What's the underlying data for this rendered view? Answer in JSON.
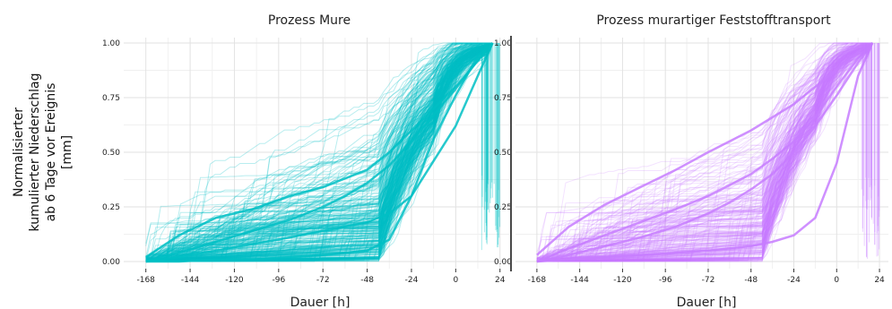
{
  "chart_data": {
    "type": "line",
    "ylabel_lines": [
      "Normalisierter",
      "kumulierter Niederschlag",
      "ab 6 Tage vor Ereignis",
      "[mm]"
    ],
    "ylim": [
      0,
      1
    ],
    "xlim": [
      -180,
      29
    ],
    "grid": true,
    "legend": "none",
    "y_ticks": [
      0.0,
      0.25,
      0.5,
      0.75,
      1.0
    ],
    "y_tick_labels": [
      "0.00",
      "0.25",
      "0.50",
      "0.75",
      "1.00"
    ],
    "x_ticks": [
      -168,
      -144,
      -120,
      -96,
      -72,
      -48,
      -24,
      0,
      24
    ],
    "x_tick_labels": [
      "-168",
      "-144",
      "-120",
      "-96",
      "-72",
      "-48",
      "-24",
      "0",
      "24"
    ],
    "panels": [
      {
        "title": "Prozess Mure",
        "xlabel": "Dauer [h]",
        "color": "#00bfc4",
        "line_count": 300,
        "note": "Each line is one normalised cumulative precipitation curve from -168 h to the event (≈ +20 h); individual values are not labelled.",
        "series": [
          {
            "x": [
              -168,
              -150,
              -130,
              -110,
              -90,
              -72,
              -60,
              -48,
              -36,
              -24,
              -12,
              0,
              12,
              20
            ],
            "y": [
              0.0,
              0.02,
              0.05,
              0.08,
              0.11,
              0.14,
              0.16,
              0.18,
              0.22,
              0.3,
              0.46,
              0.62,
              0.85,
              1.0
            ]
          },
          {
            "x": [
              -168,
              -150,
              -130,
              -110,
              -90,
              -72,
              -60,
              -48,
              -36,
              -24,
              -12,
              0,
              12,
              20
            ],
            "y": [
              0.0,
              0.0,
              0.01,
              0.01,
              0.02,
              0.03,
              0.04,
              0.05,
              0.1,
              0.3,
              0.56,
              0.76,
              0.94,
              1.0
            ]
          },
          {
            "x": [
              -168,
              -150,
              -130,
              -110,
              -90,
              -72,
              -60,
              -48,
              -36,
              -24,
              -12,
              0,
              12,
              20
            ],
            "y": [
              0.02,
              0.12,
              0.2,
              0.24,
              0.3,
              0.34,
              0.38,
              0.42,
              0.5,
              0.6,
              0.7,
              0.8,
              0.92,
              1.0
            ]
          },
          {
            "x": [
              -168,
              -150,
              -130,
              -110,
              -90,
              -72,
              -60,
              -48,
              -36,
              -24,
              -12,
              0,
              12,
              20
            ],
            "y": [
              0.0,
              0.04,
              0.09,
              0.14,
              0.19,
              0.25,
              0.3,
              0.36,
              0.44,
              0.55,
              0.67,
              0.79,
              0.92,
              1.0
            ]
          }
        ]
      },
      {
        "title": "Prozess murartiger Feststofftransport",
        "xlabel": "Dauer [h]",
        "color": "#c77cff",
        "line_count": 260,
        "note": "Each line is one normalised cumulative precipitation curve from -168 h to the event (≈ +20 h); individual values are not labelled.",
        "series": [
          {
            "x": [
              -168,
              -150,
              -130,
              -110,
              -90,
              -72,
              -60,
              -48,
              -36,
              -24,
              -12,
              0,
              12,
              20
            ],
            "y": [
              0.0,
              0.06,
              0.12,
              0.18,
              0.24,
              0.3,
              0.35,
              0.4,
              0.47,
              0.55,
              0.66,
              0.8,
              0.93,
              1.0
            ]
          },
          {
            "x": [
              -168,
              -150,
              -130,
              -110,
              -90,
              -72,
              -60,
              -48,
              -36,
              -24,
              -12,
              0,
              12,
              20
            ],
            "y": [
              0.0,
              0.01,
              0.02,
              0.03,
              0.04,
              0.05,
              0.06,
              0.07,
              0.09,
              0.12,
              0.2,
              0.45,
              0.85,
              1.0
            ]
          },
          {
            "x": [
              -168,
              -150,
              -130,
              -110,
              -90,
              -72,
              -60,
              -48,
              -36,
              -24,
              -12,
              0,
              12,
              20
            ],
            "y": [
              0.03,
              0.16,
              0.26,
              0.34,
              0.42,
              0.5,
              0.55,
              0.6,
              0.66,
              0.72,
              0.8,
              0.88,
              0.96,
              1.0
            ]
          },
          {
            "x": [
              -168,
              -150,
              -130,
              -110,
              -90,
              -72,
              -60,
              -48,
              -36,
              -24,
              -12,
              0,
              12,
              20
            ],
            "y": [
              0.0,
              0.03,
              0.07,
              0.11,
              0.16,
              0.22,
              0.27,
              0.33,
              0.4,
              0.5,
              0.62,
              0.76,
              0.91,
              1.0
            ]
          }
        ]
      }
    ]
  }
}
